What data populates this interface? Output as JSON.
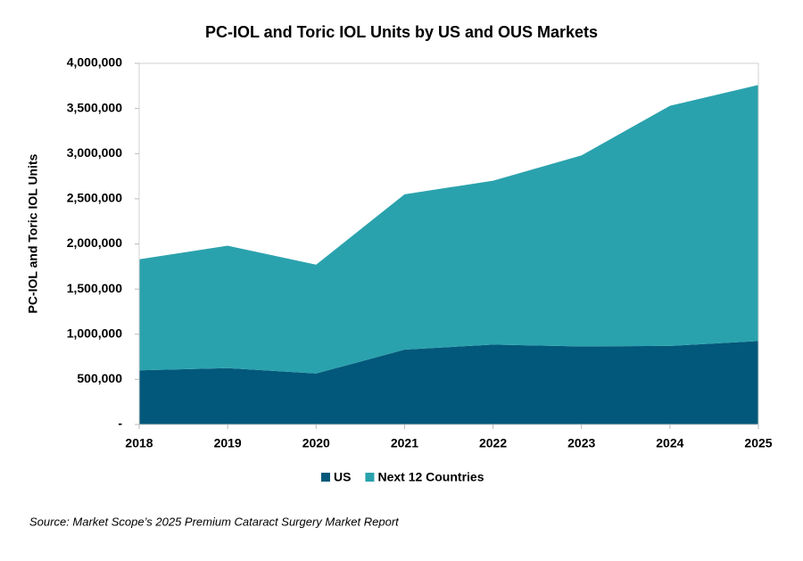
{
  "chart_data": {
    "type": "stacked_area",
    "title": "PC-IOL and Toric IOL Units by US and OUS Markets",
    "y_label": "PC-IOL and Toric IOL Units",
    "categories": [
      "2018",
      "2019",
      "2020",
      "2021",
      "2022",
      "2023",
      "2024",
      "2025"
    ],
    "series": [
      {
        "name": "US",
        "color": "#02587a",
        "values": [
          600000,
          625000,
          565000,
          830000,
          885000,
          865000,
          870000,
          925000
        ]
      },
      {
        "name": "Next 12 Countries",
        "color": "#2aa2ad",
        "values": [
          1230000,
          1355000,
          1205000,
          1720000,
          1815000,
          2115000,
          2660000,
          2835000
        ]
      }
    ],
    "ylim": [
      0,
      4000000
    ],
    "yticks": [
      {
        "value": 0,
        "label": "-"
      },
      {
        "value": 500000,
        "label": "500,000"
      },
      {
        "value": 1000000,
        "label": "1,000,000"
      },
      {
        "value": 1500000,
        "label": "1,500,000"
      },
      {
        "value": 2000000,
        "label": "2,000,000"
      },
      {
        "value": 2500000,
        "label": "2,500,000"
      },
      {
        "value": 3000000,
        "label": "3,000,000"
      },
      {
        "value": 3500000,
        "label": "3,500,000"
      },
      {
        "value": 4000000,
        "label": "4,000,000"
      }
    ],
    "legend": "bottom",
    "source": "Source: Market Scope’s 2025 Premium Cataract Surgery Market Report"
  }
}
